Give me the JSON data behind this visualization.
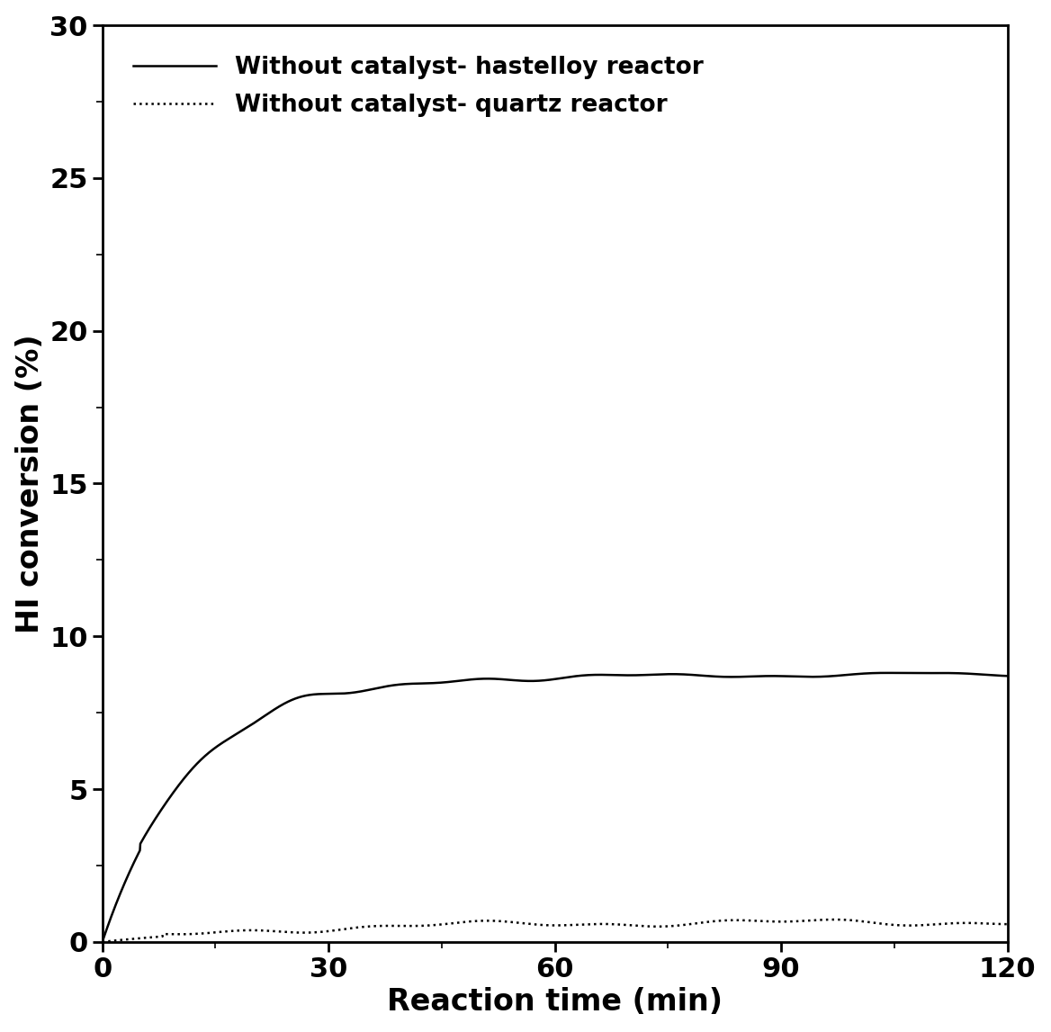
{
  "title": "",
  "xlabel": "Reaction time (min)",
  "ylabel": "HI conversion (%)",
  "xlim": [
    0,
    120
  ],
  "ylim": [
    0,
    30
  ],
  "xticks": [
    0,
    30,
    60,
    90,
    120
  ],
  "yticks": [
    0,
    5,
    10,
    15,
    20,
    25,
    30
  ],
  "legend_entries": [
    "Without catalyst- hastelloy reactor",
    "Without catalyst- quartz reactor"
  ],
  "line_color": "#000000",
  "line_width": 1.8,
  "xlabel_fontsize": 24,
  "ylabel_fontsize": 24,
  "tick_fontsize": 22,
  "legend_fontsize": 19,
  "background_color": "#ffffff"
}
